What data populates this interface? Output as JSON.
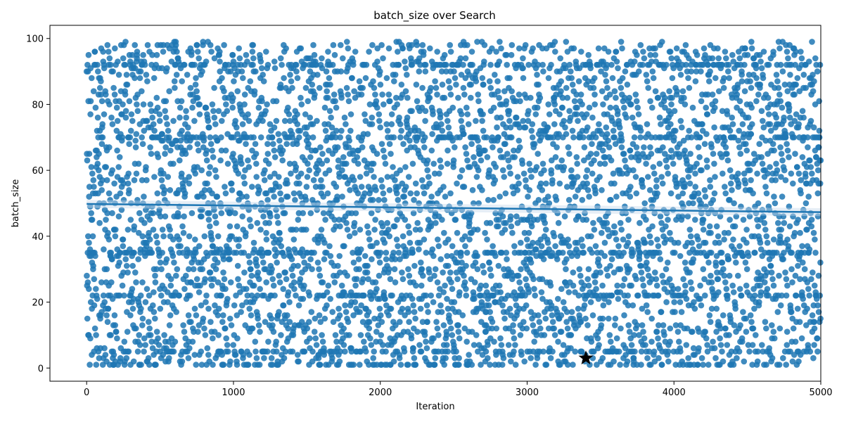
{
  "chart_data": {
    "type": "scatter",
    "title": "batch_size over Search",
    "xlabel": "Iteration",
    "ylabel": "batch_size",
    "xlim": [
      -250,
      5000
    ],
    "ylim": [
      -4,
      104
    ],
    "x_ticks": [
      0,
      1000,
      2000,
      3000,
      4000,
      5000
    ],
    "y_ticks": [
      0,
      20,
      40,
      60,
      80,
      100
    ],
    "grid": false,
    "legend": "none",
    "point_color": "#1f77b4",
    "n_points": 5000,
    "value_range": [
      1,
      99
    ],
    "regression_line": {
      "x": [
        0,
        5000
      ],
      "y": [
        49.8,
        47.3
      ],
      "color": "#1f77b4"
    },
    "best_marker": {
      "x": 3400,
      "y": 3,
      "marker": "star",
      "color": "#000000"
    }
  }
}
